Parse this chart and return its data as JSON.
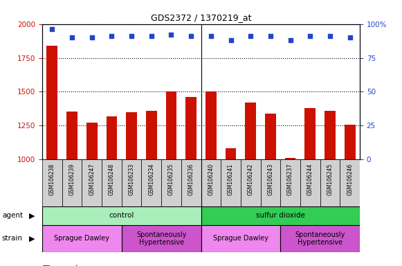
{
  "title": "GDS2372 / 1370219_at",
  "samples": [
    "GSM106238",
    "GSM106239",
    "GSM106247",
    "GSM106248",
    "GSM106233",
    "GSM106234",
    "GSM106235",
    "GSM106236",
    "GSM106240",
    "GSM106241",
    "GSM106242",
    "GSM106243",
    "GSM106237",
    "GSM106244",
    "GSM106245",
    "GSM106246"
  ],
  "counts": [
    1840,
    1355,
    1275,
    1320,
    1350,
    1360,
    1500,
    1460,
    1500,
    1085,
    1420,
    1340,
    1010,
    1380,
    1360,
    1255
  ],
  "percentiles": [
    96,
    90,
    90,
    91,
    91,
    91,
    92,
    91,
    91,
    88,
    91,
    91,
    88,
    91,
    91,
    90
  ],
  "bar_color": "#cc1100",
  "dot_color": "#2244cc",
  "ylim_left": [
    1000,
    2000
  ],
  "ylim_right": [
    0,
    100
  ],
  "yticks_left": [
    1000,
    1250,
    1500,
    1750,
    2000
  ],
  "yticks_right": [
    0,
    25,
    50,
    75,
    100
  ],
  "ytick_right_labels": [
    "0",
    "25",
    "50",
    "75",
    "100%"
  ],
  "agent_groups": [
    {
      "label": "control",
      "start": 0,
      "end": 8,
      "color": "#aaeebb"
    },
    {
      "label": "sulfur dioxide",
      "start": 8,
      "end": 16,
      "color": "#33cc55"
    }
  ],
  "strain_groups": [
    {
      "label": "Sprague Dawley",
      "start": 0,
      "end": 4,
      "color": "#ee88ee"
    },
    {
      "label": "Spontaneously\nHypertensive",
      "start": 4,
      "end": 8,
      "color": "#cc55cc"
    },
    {
      "label": "Sprague Dawley",
      "start": 8,
      "end": 12,
      "color": "#ee88ee"
    },
    {
      "label": "Spontaneously\nHypertensive",
      "start": 12,
      "end": 16,
      "color": "#cc55cc"
    }
  ],
  "xtick_bg": "#d0d0d0",
  "plot_bg": "#ffffff"
}
